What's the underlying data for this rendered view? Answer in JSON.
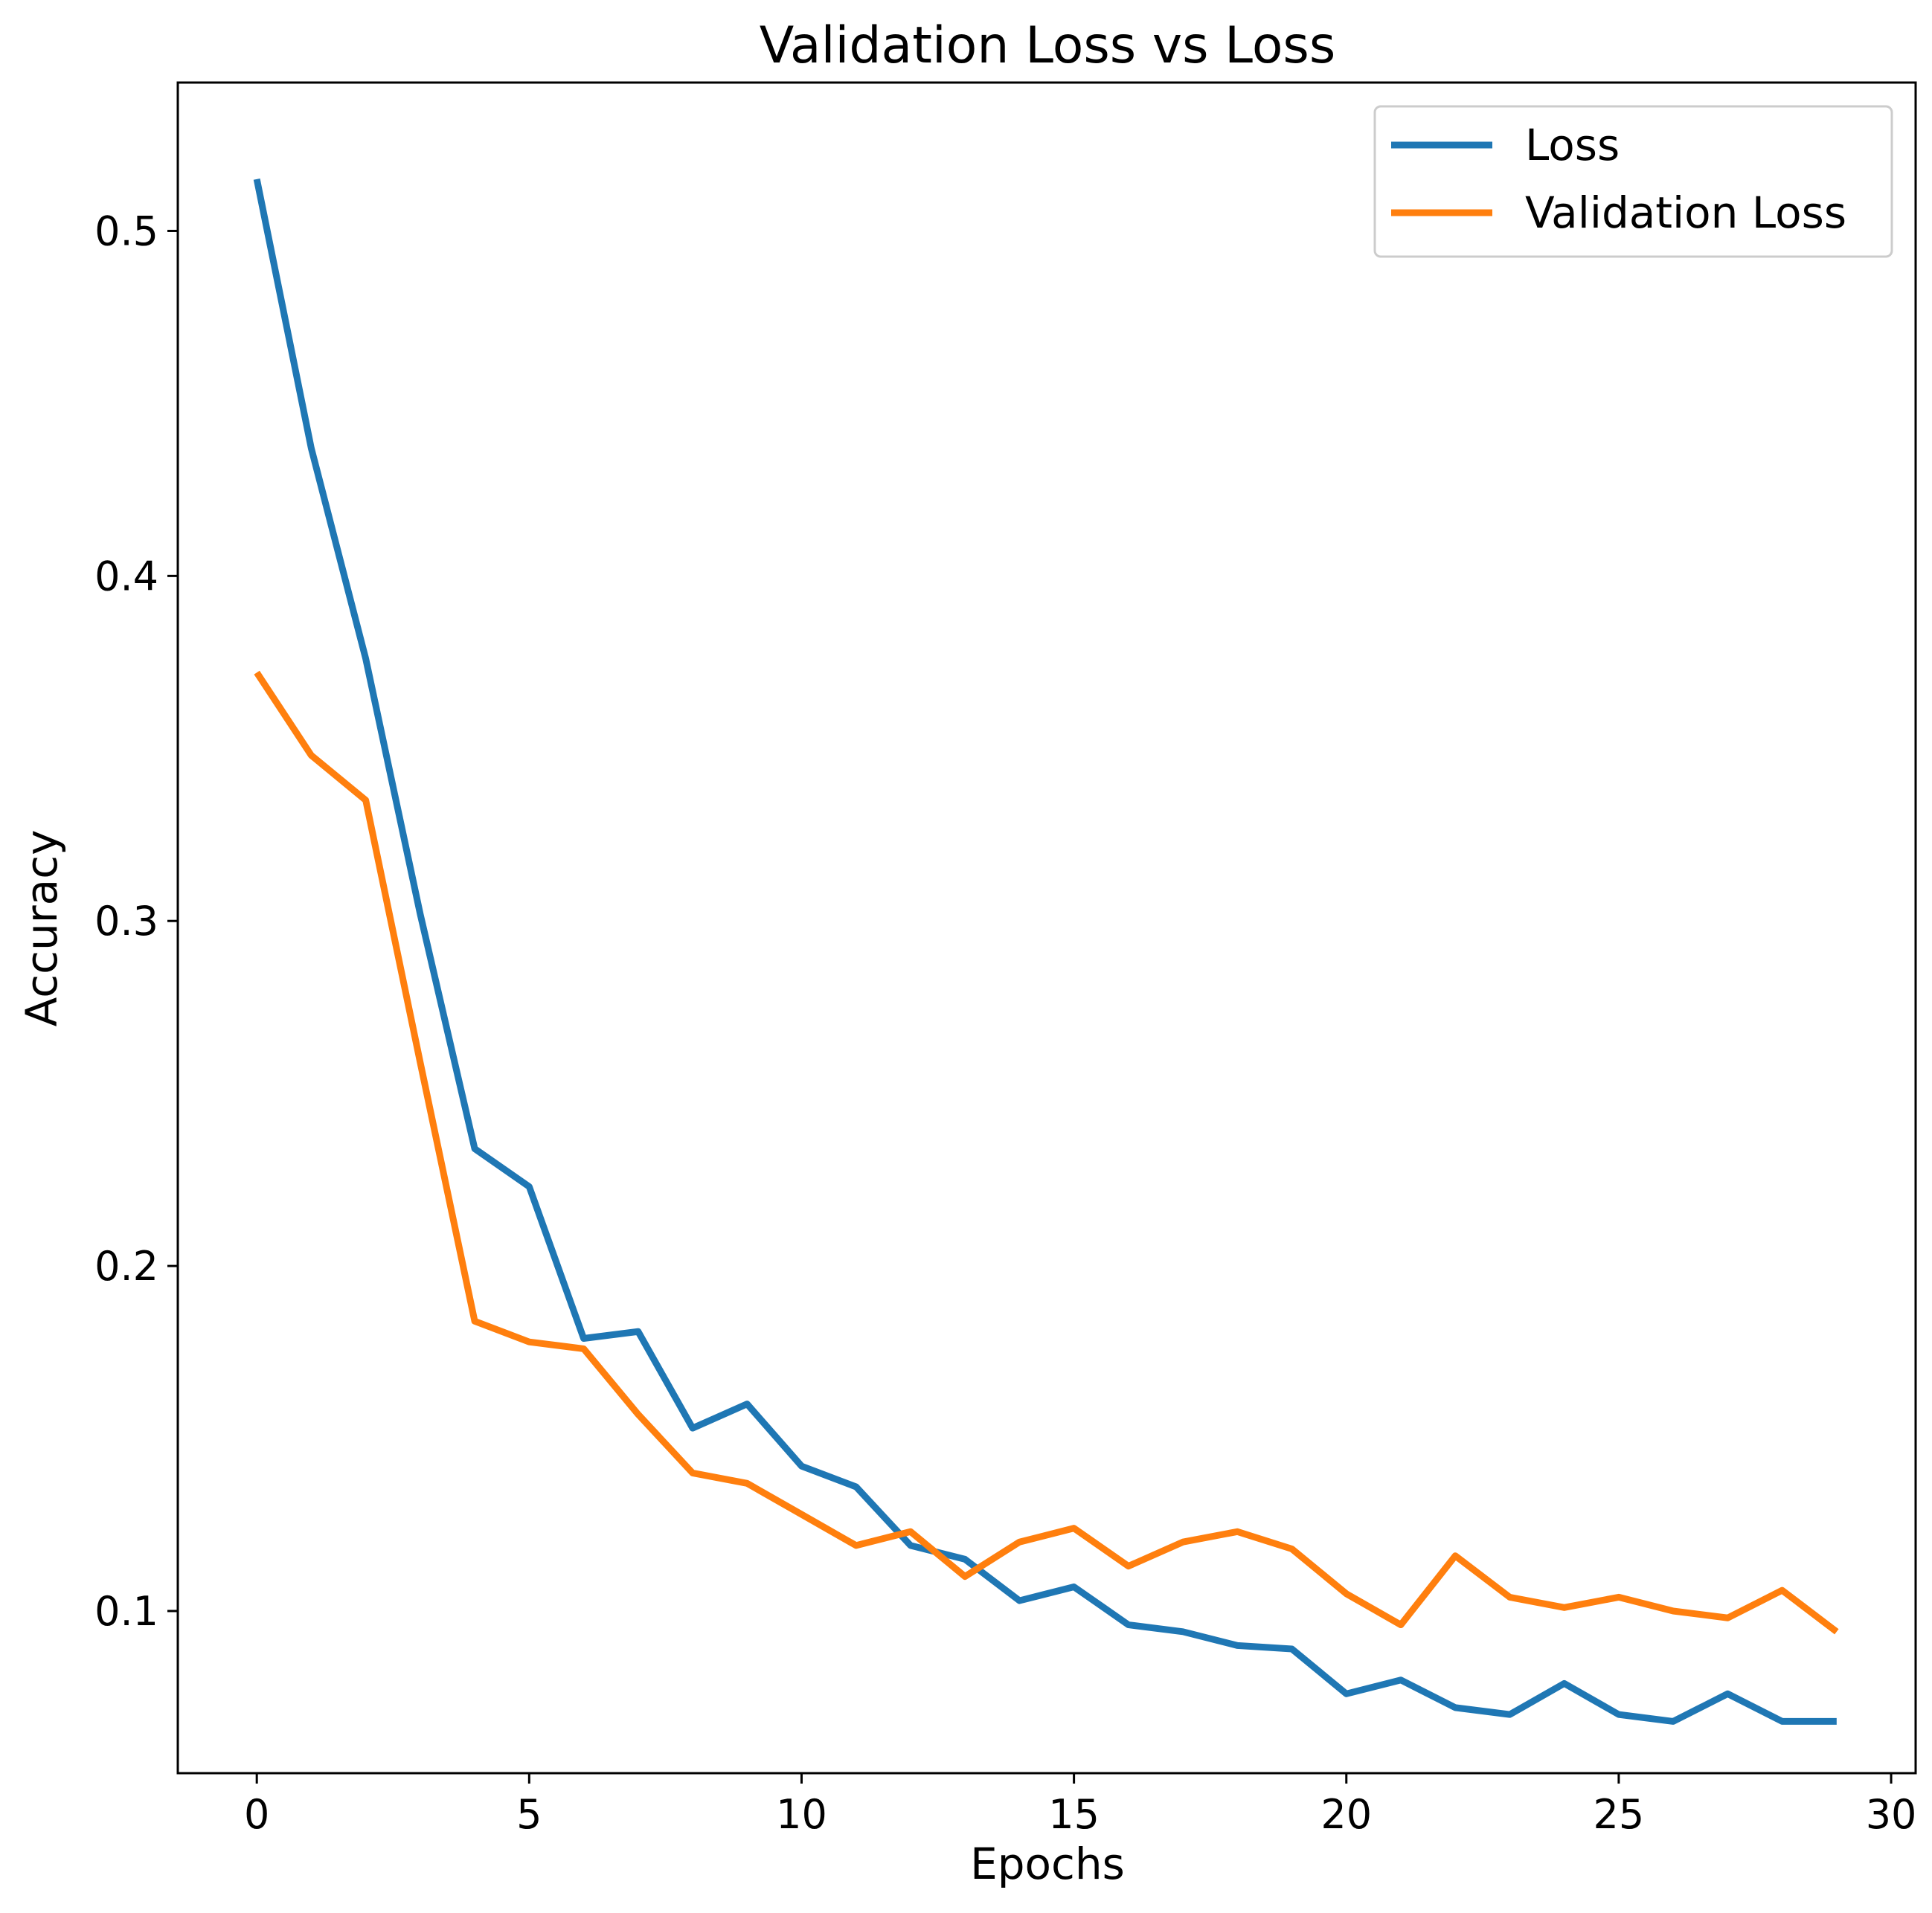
{
  "chart_data": {
    "type": "line",
    "title": "Validation Loss vs Loss",
    "xlabel": "Epochs",
    "ylabel": "Accuracy",
    "xlim": [
      -1.45,
      30.45
    ],
    "ylim": [
      0.053,
      0.543
    ],
    "xticks": [
      0,
      5,
      10,
      15,
      20,
      25,
      30
    ],
    "yticks": [
      0.1,
      0.2,
      0.3,
      0.4,
      0.5
    ],
    "xtick_labels": [
      "0",
      "5",
      "10",
      "15",
      "20",
      "25",
      "30"
    ],
    "ytick_labels": [
      "0.1",
      "0.2",
      "0.3",
      "0.4",
      "0.5"
    ],
    "grid": false,
    "legend_position": "top-right",
    "x": [
      0,
      1,
      2,
      3,
      4,
      5,
      6,
      7,
      8,
      9,
      10,
      11,
      12,
      13,
      14,
      15,
      16,
      17,
      18,
      19,
      20,
      21,
      22,
      23,
      24,
      25,
      26,
      27,
      28,
      29
    ],
    "series": [
      {
        "name": "Loss",
        "color": "#1f77b4",
        "values": [
          0.515,
          0.437,
          0.376,
          0.302,
          0.234,
          0.223,
          0.179,
          0.181,
          0.153,
          0.16,
          0.142,
          0.136,
          0.119,
          0.115,
          0.103,
          0.107,
          0.096,
          0.094,
          0.09,
          0.089,
          0.076,
          0.08,
          0.072,
          0.07,
          0.079,
          0.07,
          0.068,
          0.076,
          0.068,
          0.068
        ]
      },
      {
        "name": "Validation Loss",
        "color": "#ff7f0e",
        "values": [
          0.372,
          0.348,
          0.335,
          0.259,
          0.184,
          0.178,
          0.176,
          0.157,
          0.14,
          0.137,
          0.128,
          0.119,
          0.123,
          0.11,
          0.12,
          0.124,
          0.113,
          0.12,
          0.123,
          0.118,
          0.105,
          0.096,
          0.116,
          0.104,
          0.101,
          0.104,
          0.1,
          0.098,
          0.106,
          0.094
        ]
      }
    ]
  }
}
